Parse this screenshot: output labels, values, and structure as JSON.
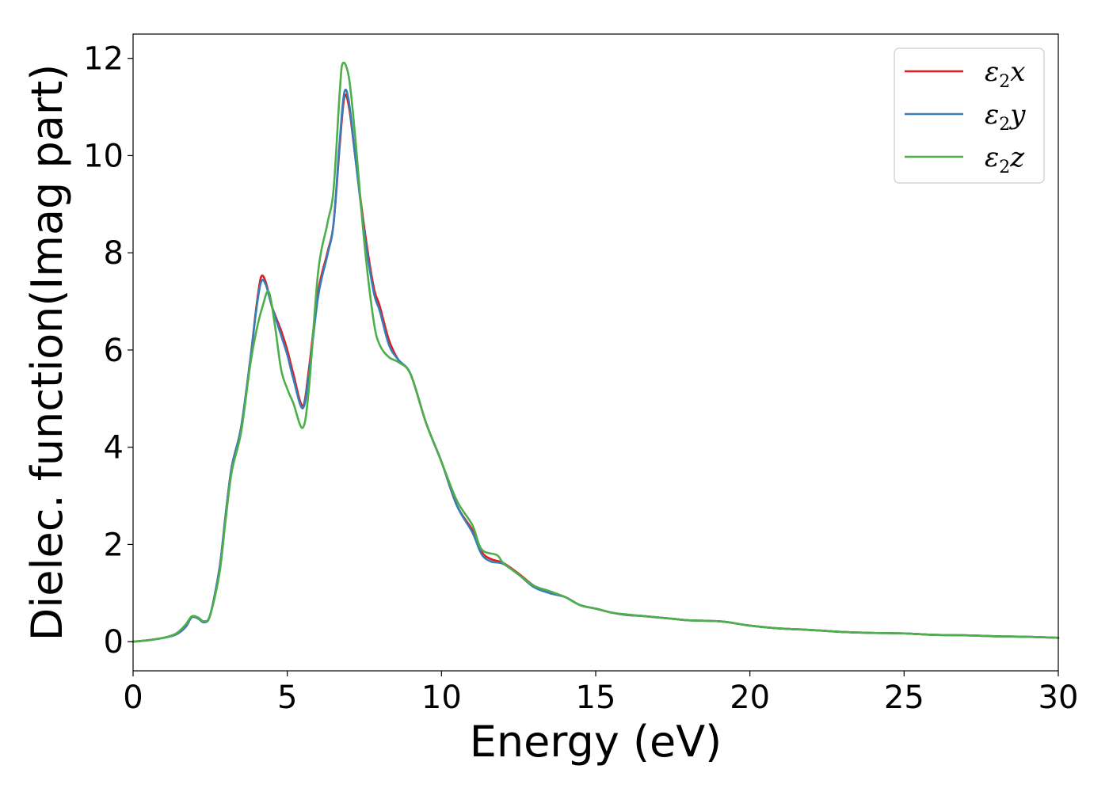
{
  "chart_data": {
    "type": "line",
    "title": "",
    "xlabel": "Energy (eV)",
    "ylabel": "Dielec. function(Imag part)",
    "xlim": [
      0,
      30
    ],
    "ylim": [
      -0.6,
      12.5
    ],
    "xticks": [
      0,
      5,
      10,
      15,
      20,
      25,
      30
    ],
    "yticks": [
      0,
      2,
      4,
      6,
      8,
      10,
      12
    ],
    "grid": false,
    "legend_position": "top-right",
    "series": [
      {
        "name": "ε2x",
        "label_base": "ε",
        "label_sub": "2",
        "label_suffix": "x",
        "color": "#e41a1c",
        "x": [
          0,
          0.5,
          1.0,
          1.4,
          1.7,
          1.9,
          2.1,
          2.3,
          2.5,
          2.8,
          3.0,
          3.2,
          3.5,
          3.8,
          4.0,
          4.15,
          4.3,
          4.5,
          4.8,
          5.0,
          5.2,
          5.5,
          5.7,
          6.0,
          6.3,
          6.5,
          6.7,
          6.85,
          7.0,
          7.2,
          7.5,
          7.8,
          8.0,
          8.3,
          8.6,
          9.0,
          9.5,
          10.0,
          10.5,
          11.0,
          11.3,
          11.6,
          12.0,
          12.5,
          13.0,
          13.5,
          14.0,
          14.5,
          15.0,
          15.5,
          16.0,
          16.5,
          17.0,
          17.5,
          18.0,
          19.0,
          19.5,
          20.0,
          21.0,
          22.0,
          23.0,
          24.0,
          25.0,
          26.0,
          27.0,
          28.0,
          29.0,
          30.0
        ],
        "y": [
          0,
          0.03,
          0.08,
          0.15,
          0.3,
          0.5,
          0.48,
          0.4,
          0.55,
          1.5,
          2.6,
          3.6,
          4.4,
          5.8,
          6.9,
          7.5,
          7.4,
          6.9,
          6.4,
          6.0,
          5.5,
          4.85,
          5.6,
          7.2,
          8.0,
          8.6,
          10.2,
          11.2,
          11.0,
          10.0,
          8.5,
          7.3,
          6.9,
          6.2,
          5.8,
          5.5,
          4.5,
          3.7,
          2.8,
          2.3,
          1.85,
          1.7,
          1.62,
          1.4,
          1.15,
          1.0,
          0.92,
          0.75,
          0.68,
          0.6,
          0.55,
          0.53,
          0.5,
          0.47,
          0.44,
          0.42,
          0.38,
          0.33,
          0.27,
          0.24,
          0.2,
          0.18,
          0.17,
          0.14,
          0.13,
          0.11,
          0.1,
          0.08
        ]
      },
      {
        "name": "ε2y",
        "label_base": "ε",
        "label_sub": "2",
        "label_suffix": "y",
        "color": "#377eb8",
        "x": [
          0,
          0.5,
          1.0,
          1.4,
          1.7,
          1.9,
          2.1,
          2.3,
          2.5,
          2.8,
          3.0,
          3.2,
          3.5,
          3.8,
          4.0,
          4.15,
          4.3,
          4.5,
          4.8,
          5.0,
          5.2,
          5.5,
          5.7,
          6.0,
          6.3,
          6.5,
          6.7,
          6.85,
          7.0,
          7.2,
          7.5,
          7.8,
          8.0,
          8.3,
          8.6,
          9.0,
          9.5,
          10.0,
          10.5,
          11.0,
          11.3,
          11.6,
          12.0,
          12.5,
          13.0,
          13.5,
          14.0,
          14.5,
          15.0,
          15.5,
          16.0,
          16.5,
          17.0,
          17.5,
          18.0,
          19.0,
          19.5,
          20.0,
          21.0,
          22.0,
          23.0,
          24.0,
          25.0,
          26.0,
          27.0,
          28.0,
          29.0,
          30.0
        ],
        "y": [
          0,
          0.03,
          0.08,
          0.15,
          0.3,
          0.5,
          0.48,
          0.4,
          0.55,
          1.5,
          2.6,
          3.6,
          4.4,
          5.8,
          6.85,
          7.4,
          7.35,
          6.9,
          6.3,
          5.9,
          5.4,
          4.8,
          5.5,
          7.1,
          7.95,
          8.6,
          10.3,
          11.3,
          11.1,
          10.0,
          8.4,
          7.2,
          6.8,
          6.1,
          5.8,
          5.5,
          4.5,
          3.7,
          2.8,
          2.25,
          1.8,
          1.65,
          1.6,
          1.38,
          1.12,
          1.0,
          0.92,
          0.75,
          0.68,
          0.6,
          0.55,
          0.53,
          0.5,
          0.47,
          0.44,
          0.42,
          0.38,
          0.33,
          0.27,
          0.24,
          0.2,
          0.18,
          0.17,
          0.14,
          0.13,
          0.11,
          0.1,
          0.08
        ]
      },
      {
        "name": "ε2z",
        "label_base": "ε",
        "label_sub": "2",
        "label_suffix": "z",
        "color": "#4daf4a",
        "x": [
          0,
          0.5,
          1.0,
          1.4,
          1.7,
          1.9,
          2.1,
          2.3,
          2.5,
          2.8,
          3.0,
          3.2,
          3.5,
          3.8,
          4.0,
          4.2,
          4.4,
          4.6,
          4.8,
          5.0,
          5.2,
          5.5,
          5.7,
          6.0,
          6.3,
          6.5,
          6.7,
          6.8,
          7.0,
          7.2,
          7.5,
          7.8,
          8.0,
          8.3,
          8.6,
          9.0,
          9.5,
          10.0,
          10.5,
          11.0,
          11.3,
          11.8,
          12.0,
          12.5,
          13.0,
          13.5,
          14.0,
          14.5,
          15.0,
          15.5,
          16.0,
          16.5,
          17.0,
          17.5,
          18.0,
          19.0,
          19.5,
          20.0,
          21.0,
          22.0,
          23.0,
          24.0,
          25.0,
          26.0,
          27.0,
          28.0,
          29.0,
          30.0
        ],
        "y": [
          0,
          0.03,
          0.08,
          0.17,
          0.35,
          0.52,
          0.5,
          0.42,
          0.55,
          1.4,
          2.5,
          3.5,
          4.3,
          5.7,
          6.4,
          6.9,
          7.2,
          6.5,
          5.6,
          5.2,
          4.9,
          4.4,
          5.2,
          7.6,
          8.6,
          9.3,
          11.3,
          11.9,
          11.6,
          10.4,
          8.2,
          6.6,
          6.1,
          5.85,
          5.75,
          5.5,
          4.5,
          3.7,
          2.9,
          2.4,
          1.9,
          1.78,
          1.62,
          1.38,
          1.15,
          1.04,
          0.92,
          0.75,
          0.68,
          0.6,
          0.56,
          0.53,
          0.5,
          0.47,
          0.44,
          0.42,
          0.38,
          0.33,
          0.27,
          0.24,
          0.2,
          0.18,
          0.17,
          0.14,
          0.13,
          0.11,
          0.1,
          0.08
        ]
      }
    ]
  }
}
